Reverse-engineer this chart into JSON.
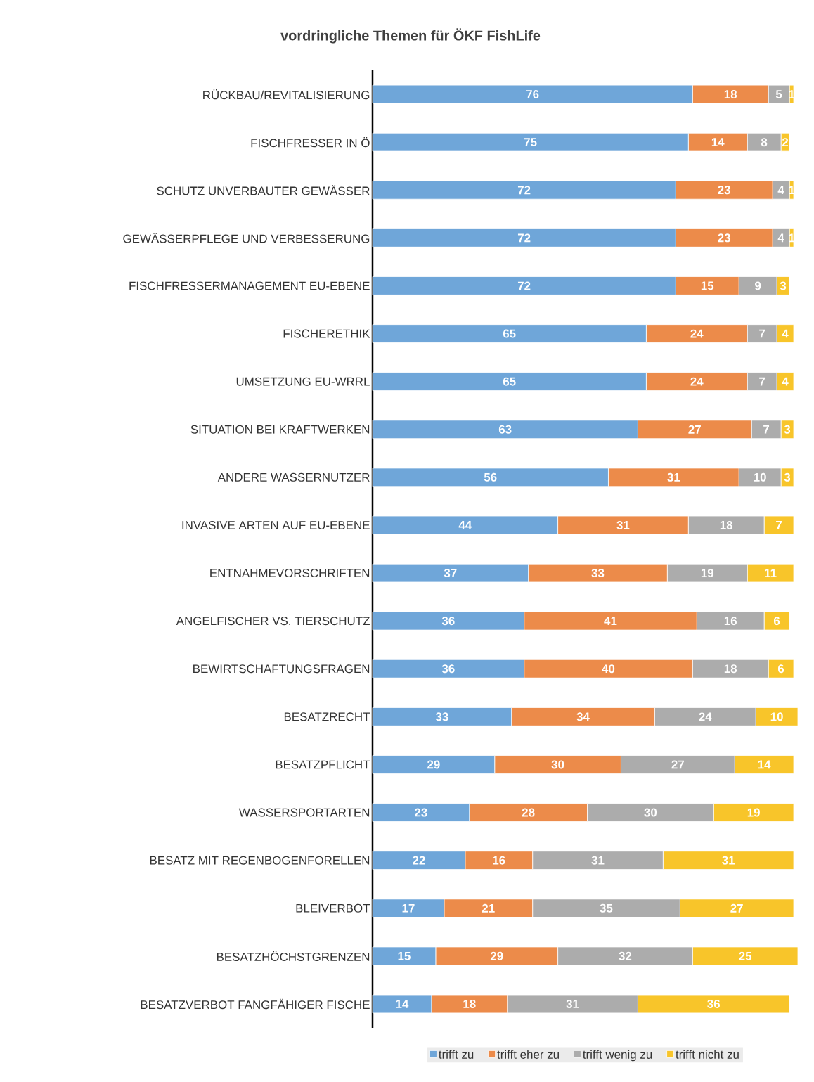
{
  "chart_data": {
    "type": "bar",
    "orientation": "horizontal",
    "stacked": true,
    "data_labels": true,
    "legend": "bottom",
    "title": "vordringliche Themen für ÖKF FishLife",
    "categories": [
      "RÜCKBAU/REVITALISIERUNG",
      "FISCHFRESSER IN Ö",
      "SCHUTZ UNVERBAUTER GEWÄSSER",
      "GEWÄSSERPFLEGE UND VERBESSERUNG",
      "FISCHFRESSERMANAGEMENT EU-EBENE",
      "FISCHERETHIK",
      "UMSETZUNG EU-WRRL",
      "SITUATION BEI KRAFTWERKEN",
      "ANDERE WASSERNUTZER",
      "INVASIVE ARTEN AUF EU-EBENE",
      "ENTNAHMEVORSCHRIFTEN",
      "ANGELFISCHER VS. TIERSCHUTZ",
      "BEWIRTSCHAFTUNGSFRAGEN",
      "BESATZRECHT",
      "BESATZPFLICHT",
      "WASSERSPORTARTEN",
      "BESATZ MIT REGENBOGENFORELLEN",
      "BLEIVERBOT",
      "BESATZHÖCHSTGRENZEN",
      "BESATZVERBOT FANGFÄHIGER FISCHE"
    ],
    "series": [
      {
        "name": "trifft zu",
        "color": "#6fa6d9",
        "values": [
          76,
          75,
          72,
          72,
          72,
          65,
          65,
          63,
          56,
          44,
          37,
          36,
          36,
          33,
          29,
          23,
          22,
          17,
          15,
          14
        ]
      },
      {
        "name": "trifft eher zu",
        "color": "#ec8b4a",
        "values": [
          18,
          14,
          23,
          23,
          15,
          24,
          24,
          27,
          31,
          31,
          33,
          41,
          40,
          34,
          30,
          28,
          16,
          21,
          29,
          18
        ]
      },
      {
        "name": "trifft wenig zu",
        "color": "#acacac",
        "values": [
          5,
          8,
          4,
          4,
          9,
          7,
          7,
          7,
          10,
          18,
          19,
          16,
          18,
          24,
          27,
          30,
          31,
          35,
          32,
          31
        ]
      },
      {
        "name": "trifft nicht zu",
        "color": "#f8c52a",
        "values": [
          1,
          2,
          1,
          1,
          3,
          4,
          4,
          3,
          3,
          7,
          11,
          6,
          6,
          10,
          14,
          19,
          31,
          27,
          25,
          36
        ]
      }
    ]
  }
}
